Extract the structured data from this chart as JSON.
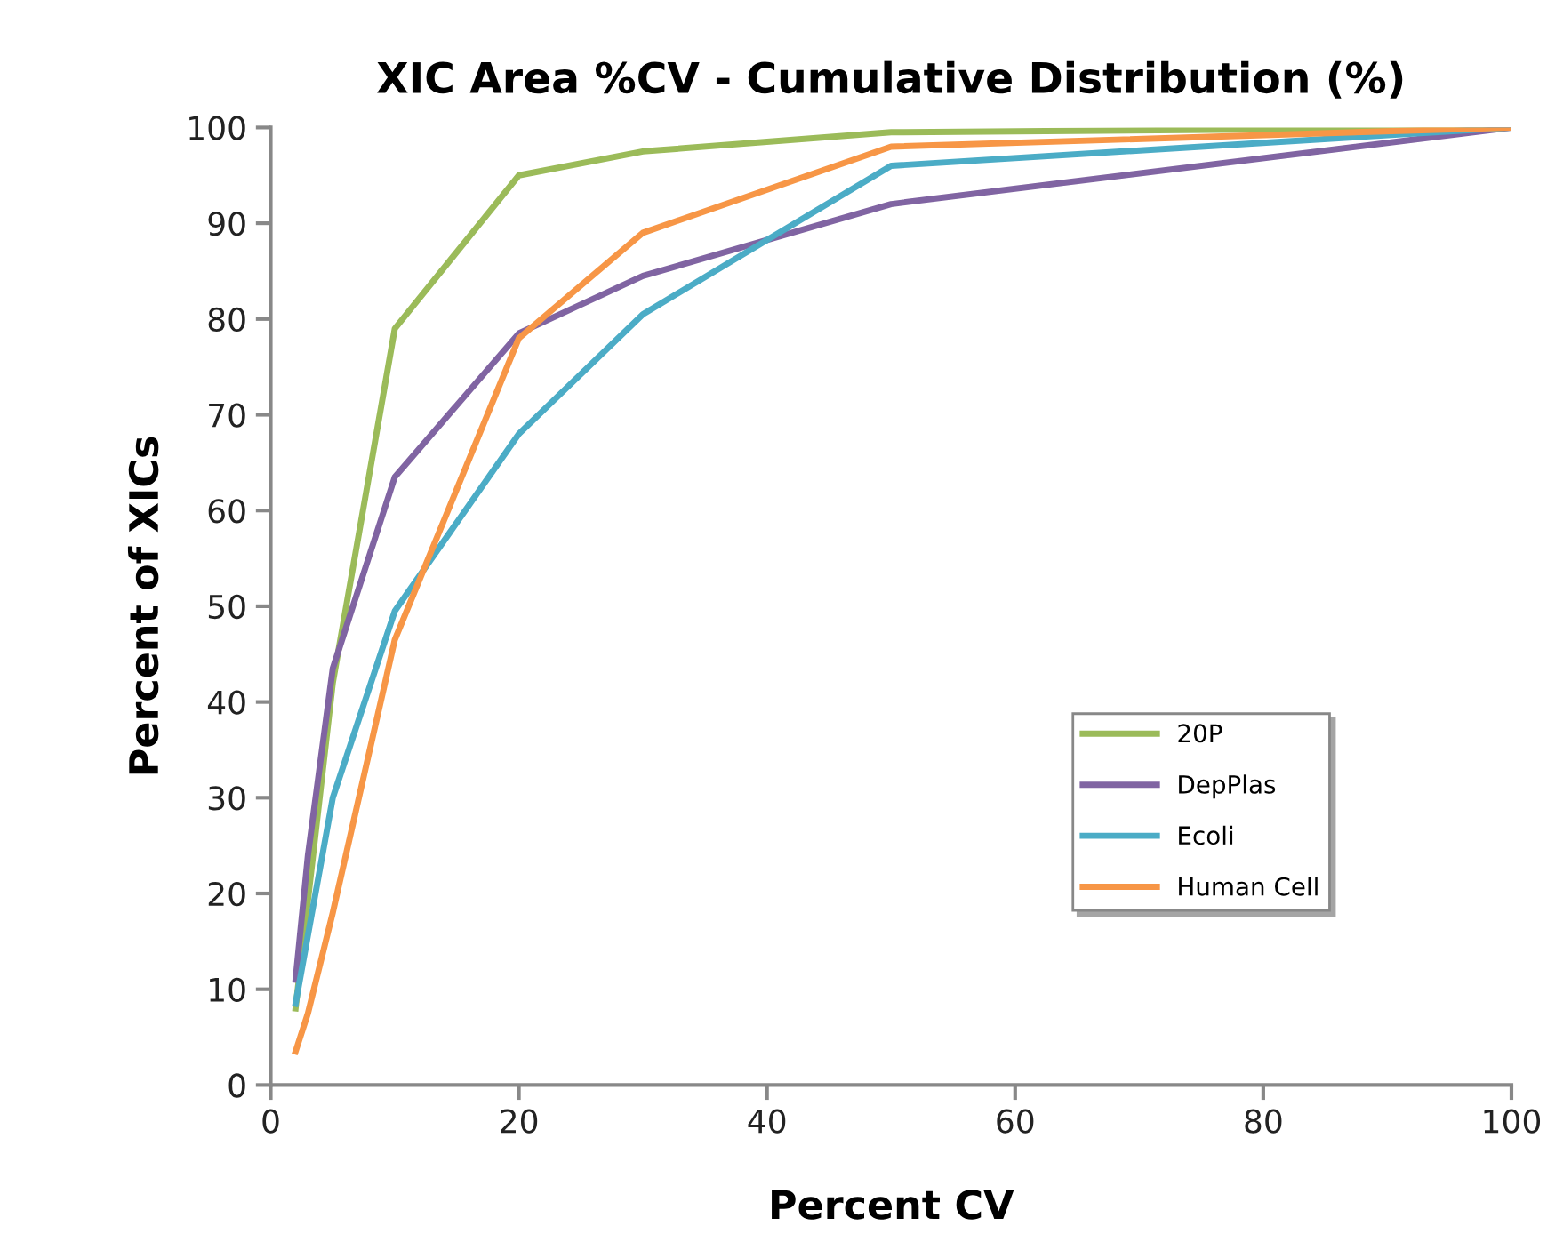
{
  "chart_data": {
    "type": "line",
    "title": "XIC Area %CV - Cumulative Distribution (%)",
    "xlabel": "Percent CV",
    "ylabel": "Percent of XICs",
    "xlim": [
      0,
      100
    ],
    "xticks": [
      0,
      20,
      40,
      60,
      80,
      100
    ],
    "ylim": [
      0,
      100
    ],
    "yticks": [
      0,
      10,
      20,
      30,
      40,
      50,
      60,
      70,
      80,
      90,
      100
    ],
    "grid": false,
    "legend": "right",
    "marker": "none",
    "line_style": "solid",
    "series": [
      {
        "name": "20P",
        "color": "#9bbb59",
        "x": [
          2,
          5,
          10,
          20,
          30,
          50,
          100
        ],
        "values": [
          8,
          42,
          79,
          95,
          97.5,
          99.5,
          100
        ]
      },
      {
        "name": "DepPlas",
        "color": "#8064a2",
        "x": [
          2,
          3,
          5,
          10,
          20,
          30,
          50,
          100
        ],
        "values": [
          11,
          24,
          43.5,
          63.5,
          78.5,
          84.5,
          92,
          100
        ]
      },
      {
        "name": "Ecoli",
        "color": "#4bacc6",
        "x": [
          2,
          5,
          10,
          20,
          30,
          50,
          100
        ],
        "values": [
          8.5,
          30,
          49.5,
          68,
          80.5,
          96,
          100
        ]
      },
      {
        "name": "Human Cell",
        "color": "#f79646",
        "x": [
          2,
          3,
          5,
          10,
          20,
          30,
          50,
          100
        ],
        "values": [
          3.5,
          7.5,
          18,
          46.5,
          78,
          89,
          98,
          100
        ]
      }
    ]
  }
}
